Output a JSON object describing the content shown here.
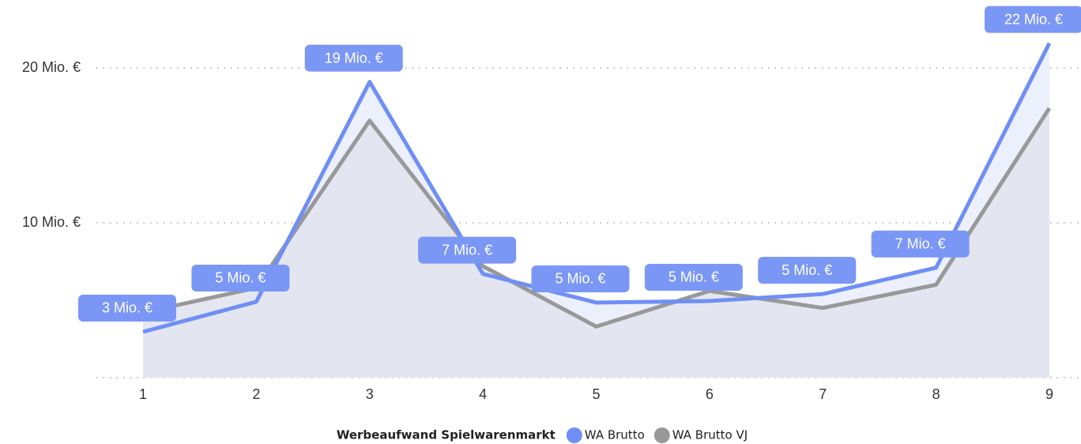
{
  "chart_data": {
    "type": "line",
    "categories": [
      "1",
      "2",
      "3",
      "4",
      "5",
      "6",
      "7",
      "8",
      "9"
    ],
    "series": [
      {
        "name": "WA Brutto",
        "color": "#6f8ff5",
        "area_color": "#eceffc",
        "values": [
          2.96,
          4.9,
          19.1,
          6.7,
          4.85,
          4.95,
          5.4,
          7.1,
          21.6
        ],
        "value_labels": [
          "3 Mio. €",
          "5 Mio. €",
          "19 Mio. €",
          "7 Mio. €",
          "5 Mio. €",
          "5 Mio. €",
          "5 Mio. €",
          "7 Mio. €",
          "22 Mio. €"
        ]
      },
      {
        "name": "WA Brutto VJ",
        "color": "#999999",
        "area_color": "#e2e4ee",
        "values": [
          4.2,
          5.8,
          16.6,
          7.2,
          3.3,
          5.6,
          4.5,
          6.0,
          17.4
        ]
      }
    ],
    "ylim": [
      0,
      22.5
    ],
    "yticks": [
      {
        "value": 10,
        "label": "10 Mio. €"
      },
      {
        "value": 20,
        "label": "20 Mio. €"
      }
    ],
    "grid": true,
    "legend_title": "Werbeaufwand Spielwarenmarkt",
    "label_color": "#7b97f5"
  }
}
